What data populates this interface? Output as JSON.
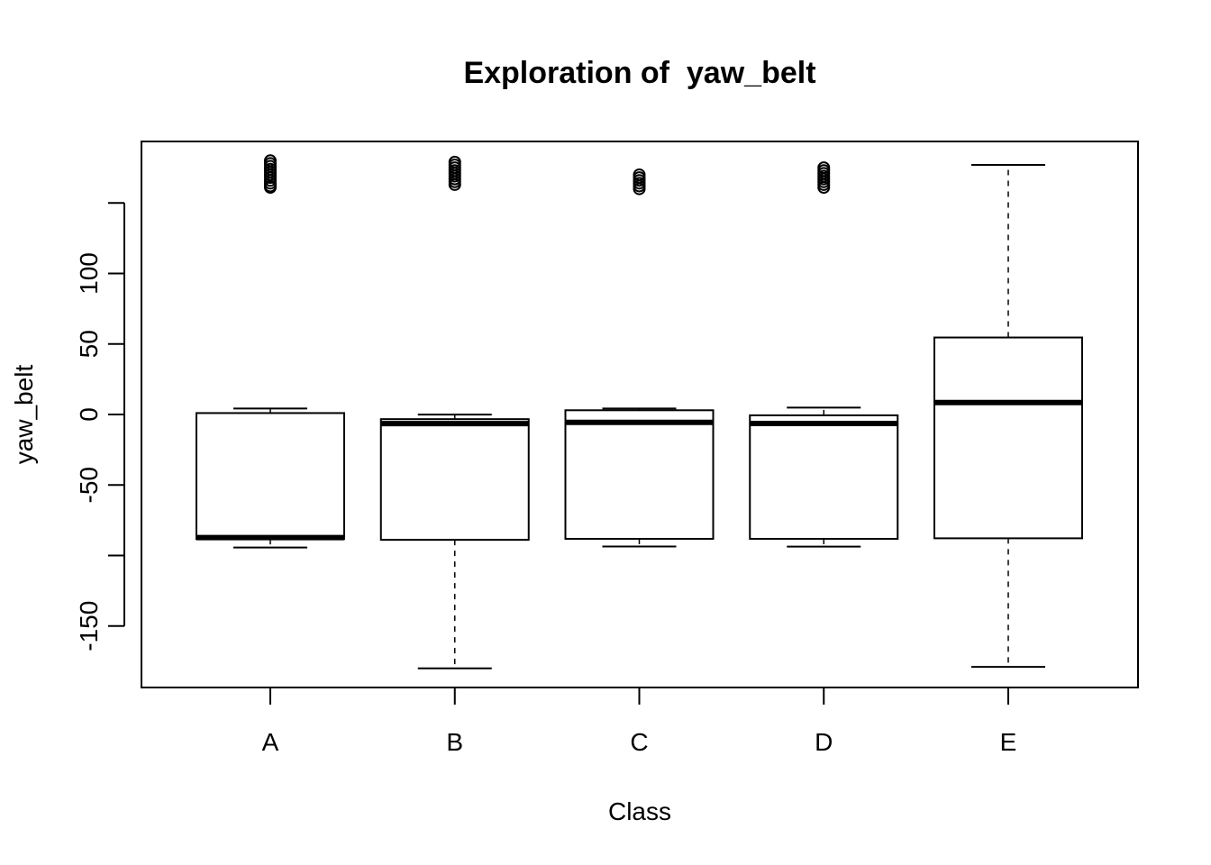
{
  "chart_data": {
    "type": "boxplot",
    "title": "Exploration of  yaw_belt",
    "xlabel": "Class",
    "ylabel": "yaw_belt",
    "categories": [
      "A",
      "B",
      "C",
      "D",
      "E"
    ],
    "y_ticks": [
      -150,
      -100,
      -50,
      0,
      50,
      100,
      150
    ],
    "y_tick_labels": [
      "-150",
      "",
      "-50",
      "0",
      "50",
      "100",
      ""
    ],
    "ylim": [
      -194,
      194
    ],
    "grid": false,
    "legend": "none",
    "boxes": [
      {
        "category": "A",
        "whisker_low": -94.3,
        "q1": -88.3,
        "median": -87.3,
        "q3": 1.0,
        "whisker_high": 4.2,
        "outliers": [
          161,
          162,
          164,
          166,
          168,
          170,
          172,
          174,
          176,
          178,
          180
        ]
      },
      {
        "category": "B",
        "whisker_low": -180.0,
        "q1": -88.9,
        "median": -6.5,
        "q3": -3.3,
        "whisker_high": -0.1,
        "outliers": [
          163,
          165,
          167,
          169,
          171,
          173,
          175,
          177,
          179
        ]
      },
      {
        "category": "C",
        "whisker_low": -93.6,
        "q1": -88.2,
        "median": -5.6,
        "q3": 3.0,
        "whisker_high": 4.2,
        "outliers": [
          160,
          162,
          164,
          166,
          168,
          170
        ]
      },
      {
        "category": "D",
        "whisker_low": -93.7,
        "q1": -88.2,
        "median": -6.4,
        "q3": -0.6,
        "whisker_high": 4.9,
        "outliers": [
          161,
          163,
          165,
          167,
          169,
          171,
          173,
          175
        ]
      },
      {
        "category": "E",
        "whisker_low": -179.0,
        "q1": -87.8,
        "median": 8.5,
        "q3": 54.6,
        "whisker_high": 177.0,
        "outliers": []
      }
    ]
  }
}
